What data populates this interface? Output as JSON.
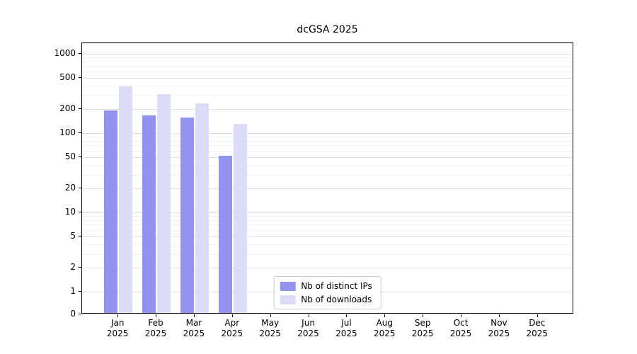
{
  "chart_data": {
    "type": "bar",
    "title": "dcGSA 2025",
    "categories": [
      "Jan",
      "Feb",
      "Mar",
      "Apr",
      "May",
      "Jun",
      "Jul",
      "Aug",
      "Sep",
      "Oct",
      "Nov",
      "Dec"
    ],
    "category_year": "2025",
    "series": [
      {
        "name": "Nb of distinct IPs",
        "color": "#9193ee",
        "values": [
          185,
          160,
          150,
          50,
          0,
          0,
          0,
          0,
          0,
          0,
          0,
          0
        ]
      },
      {
        "name": "Nb of downloads",
        "color": "#dbdcf8",
        "values": [
          370,
          300,
          230,
          125,
          0,
          0,
          0,
          0,
          0,
          0,
          0,
          0
        ]
      }
    ],
    "yscale": "symlog",
    "yticks": [
      0,
      1,
      2,
      5,
      10,
      20,
      50,
      100,
      200,
      500,
      1000
    ],
    "ylim": [
      0,
      1400
    ],
    "grid": true,
    "legend_position": "lower-center"
  }
}
